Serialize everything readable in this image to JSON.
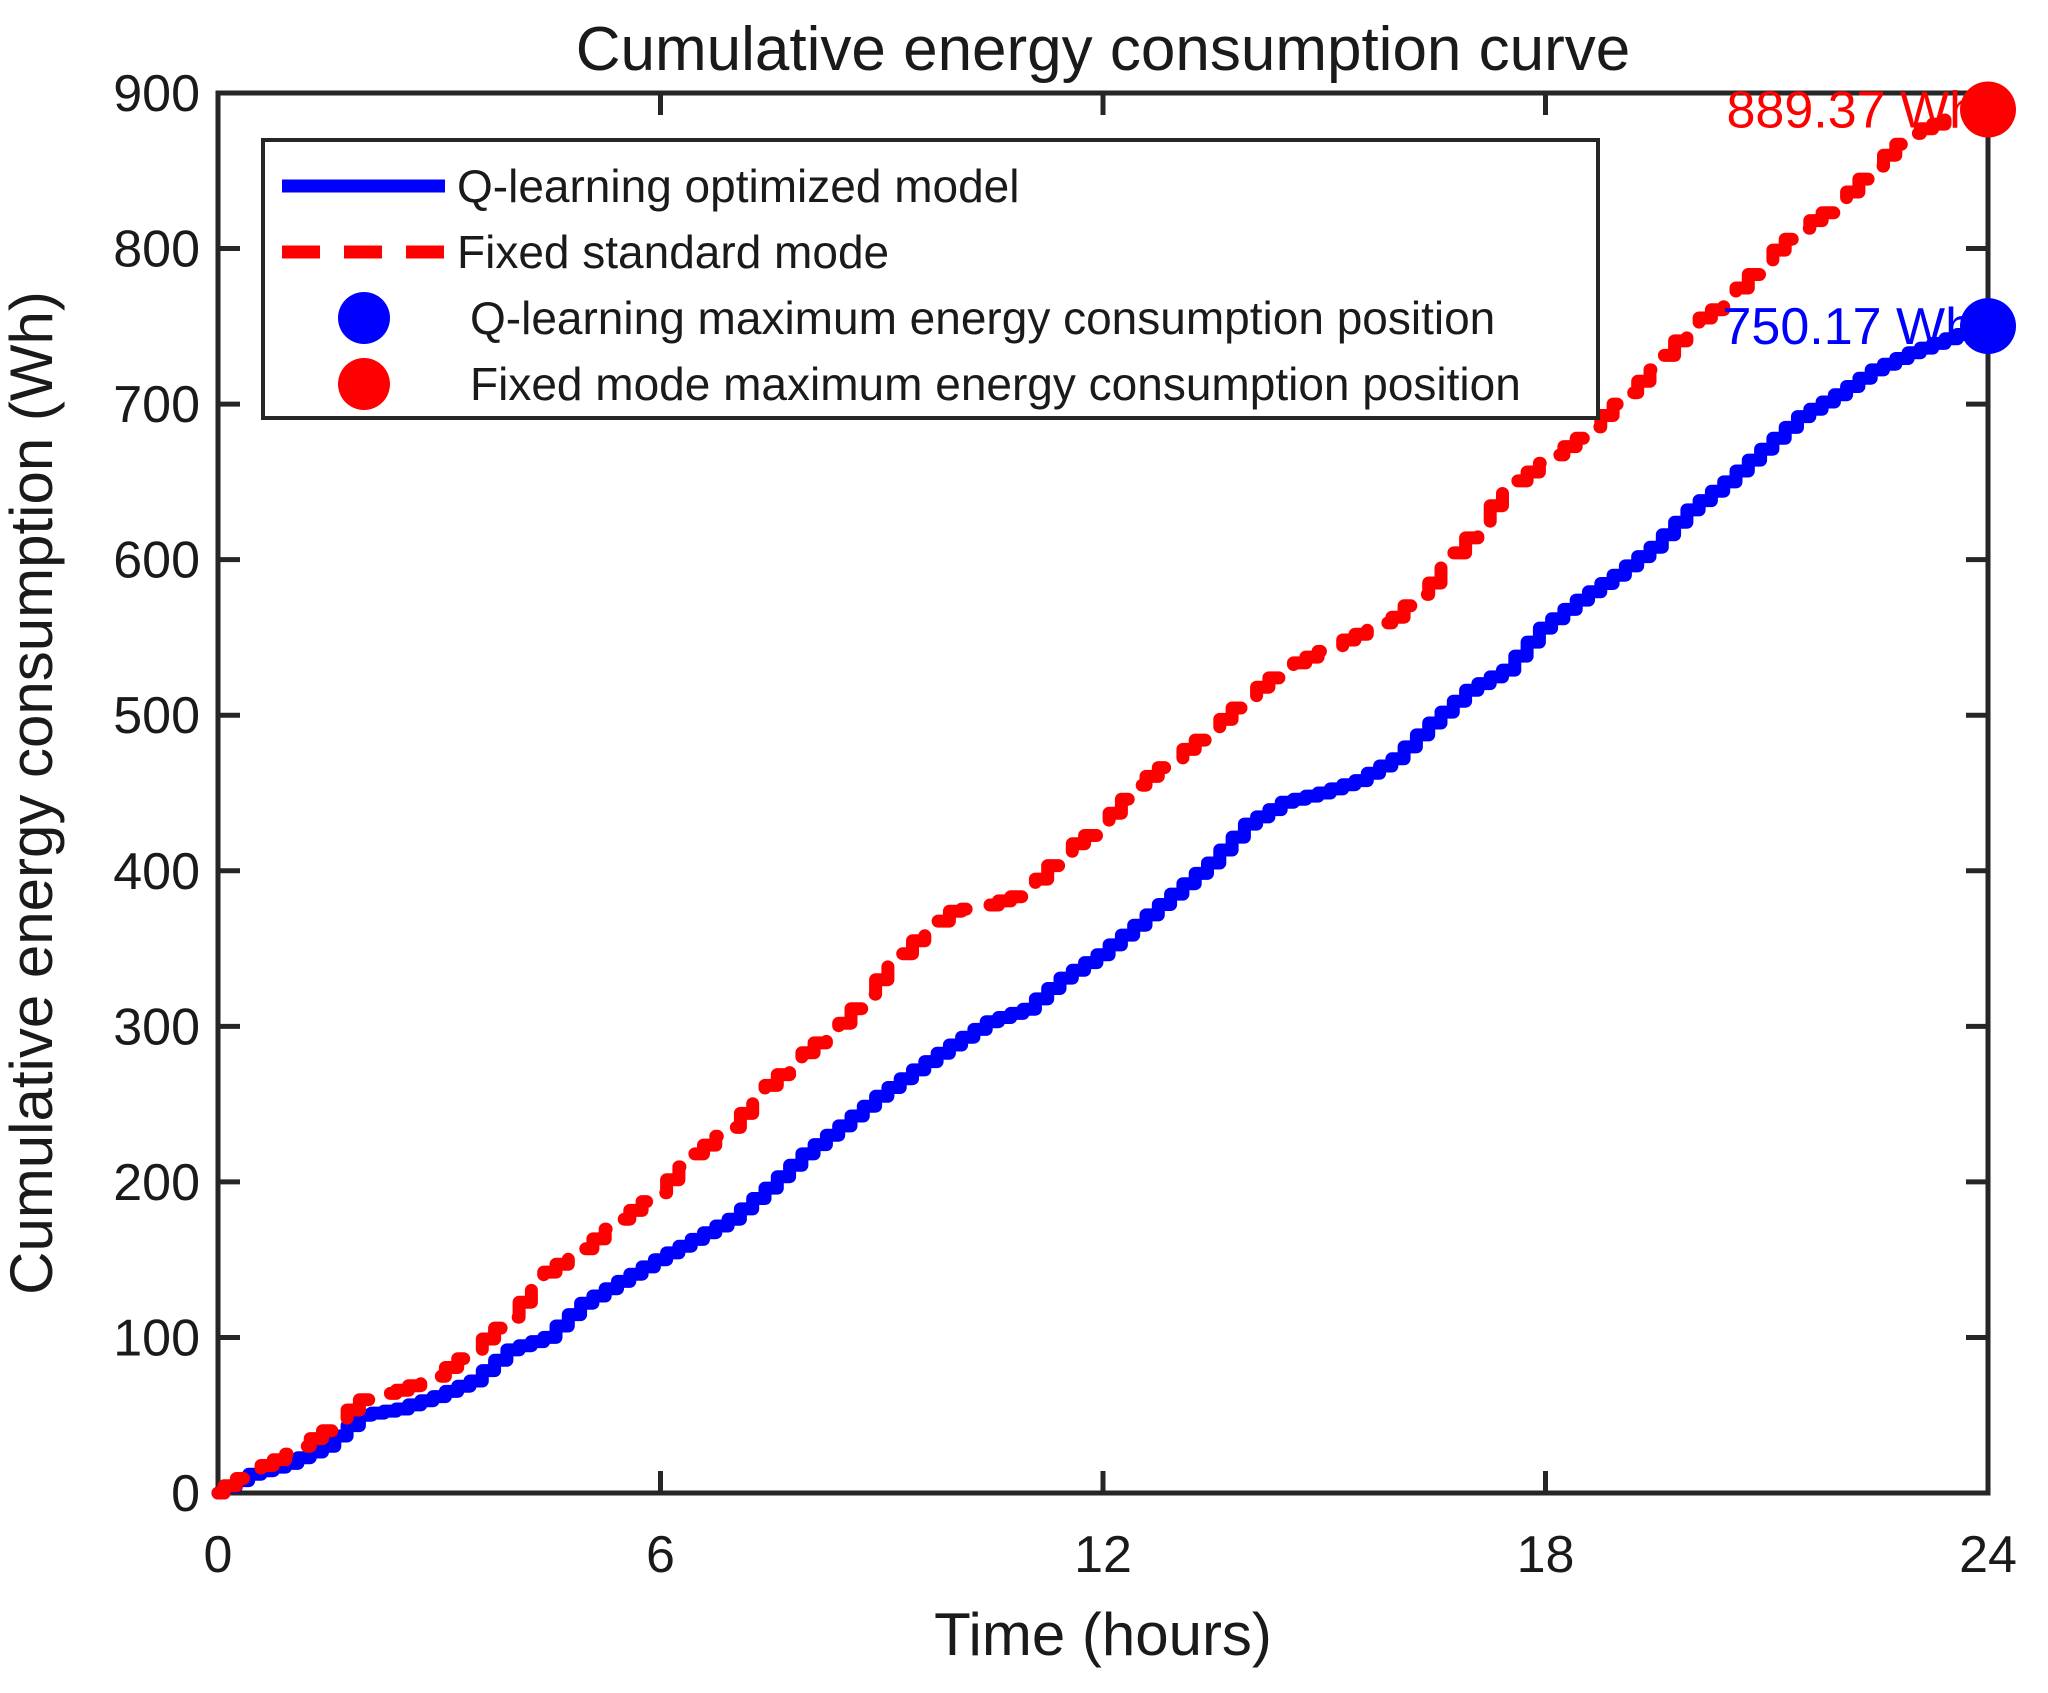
{
  "figure": {
    "background": "#FFFFFF",
    "axis_color": "#262626",
    "text_color": "#1A1A1A"
  },
  "chart_data": {
    "type": "line",
    "title": "Cumulative energy consumption curve",
    "xlabel": "Time (hours)",
    "ylabel": "Cumulative energy consumption (Wh)",
    "xlim": [
      0,
      24
    ],
    "ylim": [
      0,
      900
    ],
    "xticks": [
      0,
      6,
      12,
      18,
      24
    ],
    "yticks": [
      0,
      100,
      200,
      300,
      400,
      500,
      600,
      700,
      800,
      900
    ],
    "grid": false,
    "legend_position": "upper-left",
    "x": [
      0,
      0.5,
      1,
      1.5,
      2,
      2.5,
      3,
      3.5,
      4,
      4.5,
      5,
      5.5,
      6,
      6.5,
      7,
      7.5,
      8,
      8.5,
      9,
      9.5,
      10,
      10.5,
      11,
      11.5,
      12,
      12.5,
      13,
      13.5,
      14,
      14.5,
      15,
      15.5,
      16,
      16.5,
      17,
      17.5,
      18,
      18.5,
      19,
      19.5,
      20,
      20.5,
      21,
      21.5,
      22,
      22.5,
      23,
      23.5,
      24
    ],
    "series": [
      {
        "name": "Q-learning optimized model",
        "color": "#0000FF",
        "line_style": "solid",
        "values": [
          0,
          12,
          19,
          30,
          50,
          54,
          62,
          72,
          92,
          100,
          122,
          136,
          150,
          163,
          176,
          196,
          218,
          236,
          255,
          272,
          288,
          303,
          311,
          331,
          346,
          365,
          385,
          405,
          430,
          444,
          450,
          458,
          472,
          495,
          516,
          529,
          556,
          574,
          590,
          608,
          632,
          650,
          671,
          692,
          706,
          722,
          733,
          742,
          750.17
        ]
      },
      {
        "name": "Fixed standard mode",
        "color": "#FF0000",
        "line_style": "dashed",
        "values": [
          0,
          14,
          25,
          40,
          60,
          66,
          75,
          92,
          113,
          142,
          157,
          176,
          193,
          218,
          235,
          262,
          283,
          302,
          330,
          355,
          374,
          378,
          386,
          412,
          428,
          455,
          472,
          490,
          512,
          530,
          541,
          552,
          563,
          585,
          614,
          645,
          662,
          678,
          700,
          722,
          750,
          766,
          792,
          813,
          828,
          853,
          874,
          883,
          889.37
        ]
      }
    ],
    "markers": [
      {
        "name": "Q-learning maximum energy consumption position",
        "color": "#0000FF",
        "x": 24,
        "y": 750.17,
        "label": "750.17 Wh"
      },
      {
        "name": "Fixed mode maximum energy consumption position",
        "color": "#FF0000",
        "x": 24,
        "y": 889.37,
        "label": "889.37 Wh"
      }
    ]
  }
}
